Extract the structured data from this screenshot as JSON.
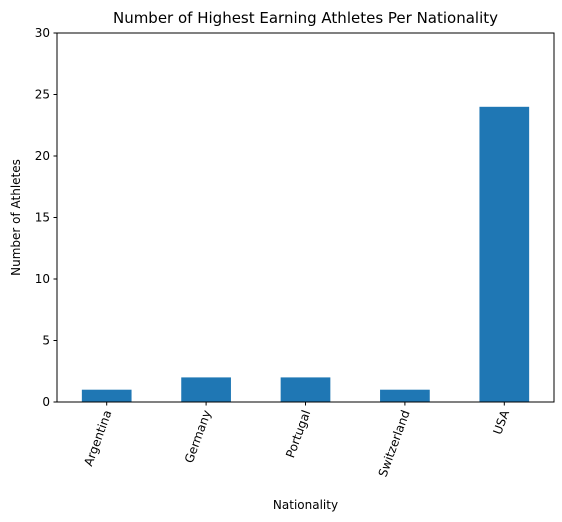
{
  "chart_data": {
    "type": "bar",
    "title": "Number of Highest Earning Athletes Per Nationality",
    "xlabel": "Nationality",
    "ylabel": "Number of Athletes",
    "categories": [
      "Argentina",
      "Germany",
      "Portugal",
      "Switzerland",
      "USA"
    ],
    "values": [
      1,
      2,
      2,
      1,
      24
    ],
    "ylim": [
      0,
      30
    ],
    "yticks": [
      "0",
      "5",
      "10",
      "15",
      "20",
      "25",
      "30"
    ],
    "grid": false,
    "legend": "none",
    "bar_color": "#1f77b4",
    "tick_rotation_deg": 70
  }
}
